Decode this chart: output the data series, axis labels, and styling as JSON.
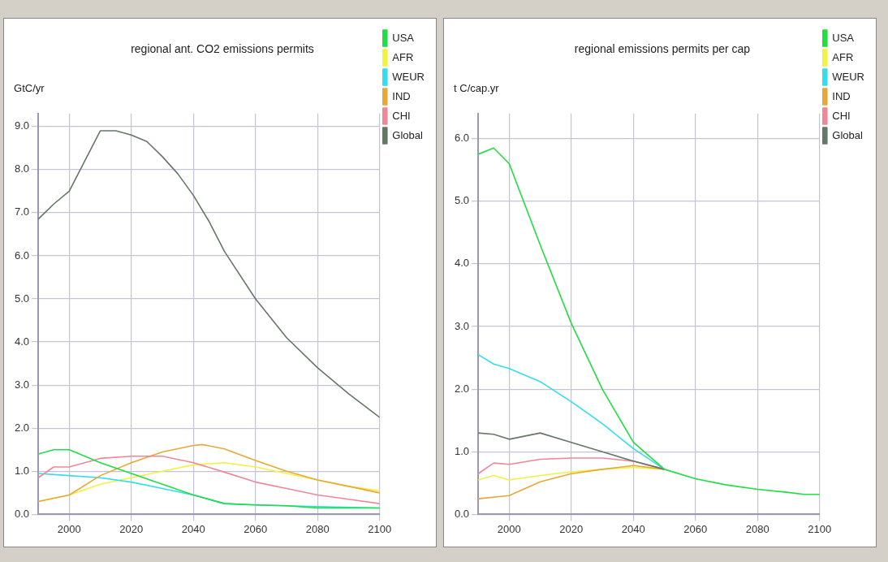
{
  "chart_data": [
    {
      "type": "line",
      "title": "regional ant. CO2 emissions permits",
      "ylabel": "GtC/yr",
      "xlim": [
        1990,
        2100
      ],
      "xticks": [
        2000,
        2020,
        2040,
        2060,
        2080,
        2100
      ],
      "ylim": [
        0,
        9.3
      ],
      "yticks": [
        {
          "value": 0,
          "label": "0.0"
        },
        {
          "value": 1,
          "label": "1.0"
        },
        {
          "value": 2,
          "label": "2.0"
        },
        {
          "value": 3,
          "label": "3.0"
        },
        {
          "value": 4,
          "label": "4.0"
        },
        {
          "value": 5,
          "label": "5.0"
        },
        {
          "value": 6,
          "label": "6.0"
        },
        {
          "value": 7,
          "label": "7.0"
        },
        {
          "value": 8,
          "label": "8.0"
        },
        {
          "value": 9,
          "label": "9.0"
        }
      ],
      "grid": true,
      "legend": "top right",
      "marker": "none",
      "line_style": "solid",
      "series": [
        {
          "name": "USA",
          "color": "#22dd44",
          "x": [
            1990,
            1995,
            2000,
            2010,
            2020,
            2030,
            2040,
            2050,
            2060,
            2070,
            2080,
            2100
          ],
          "values": [
            1.4,
            1.5,
            1.5,
            1.2,
            0.95,
            0.7,
            0.45,
            0.25,
            0.22,
            0.2,
            0.15,
            0.15
          ]
        },
        {
          "name": "AFR",
          "color": "#f2f240",
          "x": [
            1990,
            2000,
            2010,
            2020,
            2030,
            2040,
            2050,
            2060,
            2070,
            2080,
            2090,
            2100
          ],
          "values": [
            0.3,
            0.45,
            0.7,
            0.85,
            1.0,
            1.15,
            1.2,
            1.1,
            0.95,
            0.8,
            0.65,
            0.55
          ]
        },
        {
          "name": "WEUR",
          "color": "#33ddee",
          "x": [
            1990,
            2000,
            2010,
            2020,
            2030,
            2040,
            2050,
            2060,
            2070,
            2080,
            2100
          ],
          "values": [
            0.95,
            0.9,
            0.85,
            0.75,
            0.6,
            0.45,
            0.25,
            0.22,
            0.2,
            0.18,
            0.15
          ]
        },
        {
          "name": "IND",
          "color": "#e8a838",
          "x": [
            1990,
            2000,
            2010,
            2020,
            2030,
            2040,
            2043,
            2050,
            2060,
            2070,
            2080,
            2090,
            2100
          ],
          "values": [
            0.3,
            0.45,
            0.9,
            1.2,
            1.45,
            1.6,
            1.62,
            1.52,
            1.25,
            1.0,
            0.8,
            0.65,
            0.5
          ]
        },
        {
          "name": "CHI",
          "color": "#ee8899",
          "x": [
            1990,
            1995,
            2000,
            2010,
            2020,
            2030,
            2040,
            2050,
            2060,
            2070,
            2080,
            2090,
            2100
          ],
          "values": [
            0.85,
            1.1,
            1.1,
            1.3,
            1.35,
            1.35,
            1.2,
            0.98,
            0.75,
            0.6,
            0.45,
            0.35,
            0.25
          ]
        },
        {
          "name": "Global",
          "color": "#667766",
          "x": [
            1990,
            1995,
            2000,
            2005,
            2010,
            2015,
            2020,
            2025,
            2030,
            2035,
            2040,
            2045,
            2050,
            2060,
            2070,
            2080,
            2090,
            2100
          ],
          "values": [
            6.85,
            7.2,
            7.5,
            8.2,
            8.9,
            8.9,
            8.8,
            8.65,
            8.3,
            7.9,
            7.4,
            6.8,
            6.1,
            5.0,
            4.1,
            3.4,
            2.8,
            2.25
          ]
        }
      ]
    },
    {
      "type": "line",
      "title": "regional emissions permits per cap",
      "ylabel": "t C/cap.yr",
      "xlim": [
        1990,
        2100
      ],
      "xticks": [
        2000,
        2020,
        2040,
        2060,
        2080,
        2100
      ],
      "ylim": [
        0,
        6.4
      ],
      "yticks": [
        {
          "value": 0,
          "label": "0.0"
        },
        {
          "value": 1,
          "label": "1.0"
        },
        {
          "value": 2,
          "label": "2.0"
        },
        {
          "value": 3,
          "label": "3.0"
        },
        {
          "value": 4,
          "label": "4.0"
        },
        {
          "value": 5,
          "label": "5.0"
        },
        {
          "value": 6,
          "label": "6.0"
        }
      ],
      "grid": true,
      "legend": "top right",
      "marker": "none",
      "line_style": "solid",
      "series": [
        {
          "name": "USA",
          "color": "#22dd44",
          "x": [
            1990,
            1995,
            2000,
            2010,
            2020,
            2030,
            2040,
            2050,
            2060,
            2070,
            2080,
            2090,
            2095,
            2100
          ],
          "values": [
            5.75,
            5.85,
            5.6,
            4.3,
            3.05,
            2.0,
            1.15,
            0.72,
            0.57,
            0.47,
            0.4,
            0.35,
            0.32,
            0.32
          ]
        },
        {
          "name": "AFR",
          "color": "#f2f240",
          "x": [
            1990,
            1995,
            2000,
            2010,
            2020,
            2030,
            2040,
            2050
          ],
          "values": [
            0.55,
            0.62,
            0.55,
            0.62,
            0.68,
            0.72,
            0.75,
            0.72
          ]
        },
        {
          "name": "WEUR",
          "color": "#33ddee",
          "x": [
            1990,
            1995,
            2000,
            2010,
            2020,
            2030,
            2040,
            2050
          ],
          "values": [
            2.55,
            2.4,
            2.33,
            2.12,
            1.8,
            1.45,
            1.05,
            0.72
          ]
        },
        {
          "name": "IND",
          "color": "#e8a838",
          "x": [
            1990,
            2000,
            2010,
            2020,
            2030,
            2040,
            2050
          ],
          "values": [
            0.25,
            0.3,
            0.52,
            0.65,
            0.72,
            0.78,
            0.72
          ]
        },
        {
          "name": "CHI",
          "color": "#ee8899",
          "x": [
            1990,
            1995,
            2000,
            2010,
            2020,
            2030,
            2040,
            2050
          ],
          "values": [
            0.65,
            0.82,
            0.8,
            0.88,
            0.9,
            0.9,
            0.85,
            0.72
          ]
        },
        {
          "name": "Global",
          "color": "#667766",
          "x": [
            1990,
            1995,
            2000,
            2010,
            2020,
            2030,
            2040,
            2050
          ],
          "values": [
            1.3,
            1.28,
            1.2,
            1.3,
            1.15,
            1.0,
            0.85,
            0.72
          ]
        }
      ]
    }
  ]
}
